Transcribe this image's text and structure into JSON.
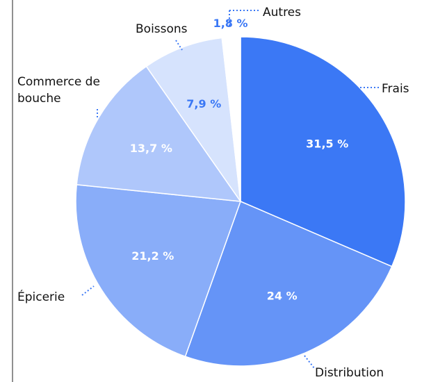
{
  "chart_data": {
    "type": "pie",
    "categories": [
      "Frais",
      "Distribution",
      "Épicerie",
      "Commerce de bouche",
      "Boissons",
      "Autres"
    ],
    "values": [
      31.5,
      24,
      21.2,
      13.7,
      7.9,
      1.8
    ],
    "value_labels": [
      "31,5 %",
      "24 %",
      "21,2 %",
      "13,7 %",
      "7,9 %",
      "1,8 %"
    ],
    "colors": [
      "#3b78f5",
      "#6594f7",
      "#89adf9",
      "#afc7fb",
      "#d6e3fd",
      "#ffffff"
    ]
  }
}
